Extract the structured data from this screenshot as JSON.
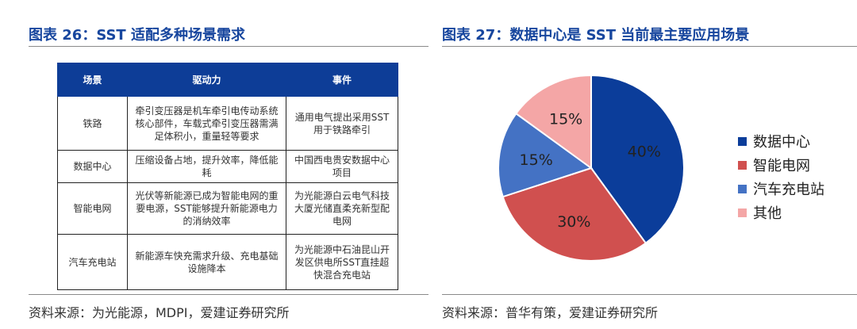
{
  "left": {
    "title": "图表 26：SST 适配多种场景需求",
    "headers": [
      "场景",
      "驱动力",
      "事件"
    ],
    "rows": [
      {
        "scene": "铁路",
        "driver": "牵引变压器是机车牵引电传动系统核心部件，车载式牵引变压器需满足体积小，重量轻等要求",
        "event": "通用电气提出采用SST用于铁路牵引"
      },
      {
        "scene": "数据中心",
        "driver": "压缩设备占地，提升效率，降低能耗",
        "event": "中国西电贵安数据中心项目"
      },
      {
        "scene": "智能电网",
        "driver": "光伏等新能源已成为智能电网的重要电源，SST能够提升新能源电力的消纳效率",
        "event": "为光能源白云电气科技大厦光储直柔充新型配电网"
      },
      {
        "scene": "汽车充电站",
        "driver": "新能源车快充需求升级、充电基础设施降本",
        "event": "为光能源中石油昆山开发区供电所SST直挂超快混合充电站"
      }
    ],
    "source": "资料来源：为光能源，MDPI，爱建证券研究所"
  },
  "right": {
    "title": "图表 27：数据中心是 SST 当前最主要应用场景",
    "source": "资料来源：普华有策，爱建证券研究所"
  },
  "chart_data": {
    "type": "pie",
    "title": "图表 27：数据中心是 SST 当前最主要应用场景",
    "categories": [
      "数据中心",
      "智能电网",
      "汽车充电站",
      "其他"
    ],
    "values": [
      40,
      30,
      15,
      15
    ],
    "data_labels": [
      "40%",
      "30%",
      "15%",
      "15%"
    ],
    "colors": [
      "#0b3d9a",
      "#d0504f",
      "#4472c4",
      "#f4a6a6"
    ],
    "start": "12 o'clock",
    "direction": "clockwise",
    "legend_position": "right"
  }
}
